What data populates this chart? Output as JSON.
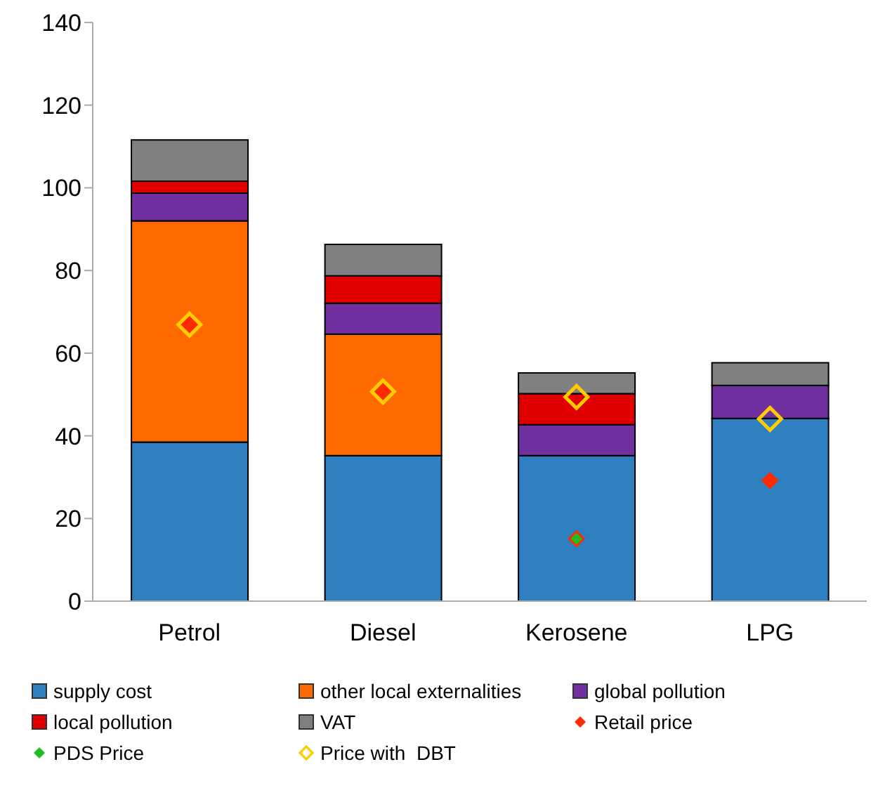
{
  "chart_data": {
    "type": "bar",
    "stacked": true,
    "categories": [
      "Petrol",
      "Diesel",
      "Kerosene",
      "LPG"
    ],
    "series": [
      {
        "name": "supply cost",
        "color": "#2e7fc0",
        "values": [
          38.5,
          35.2,
          35.2,
          44.2
        ]
      },
      {
        "name": "other local externalities",
        "color": "#ff6a00",
        "values": [
          53.5,
          29.4,
          0,
          0
        ]
      },
      {
        "name": "global pollution",
        "color": "#7030a0",
        "values": [
          6.7,
          7.5,
          7.5,
          8.0
        ]
      },
      {
        "name": "local pollution",
        "color": "#e00000",
        "values": [
          2.9,
          6.6,
          7.5,
          0
        ]
      },
      {
        "name": "VAT",
        "color": "#808080",
        "values": [
          10.0,
          7.6,
          5.0,
          5.5
        ]
      },
      {
        "name": "Retail price",
        "type": "scatter",
        "marker": "diamond",
        "color": "#ff2a00",
        "values": [
          66.9,
          50.7,
          15.1,
          29.2
        ]
      },
      {
        "name": "PDS Price",
        "type": "scatter",
        "marker": "diamond",
        "color": "#22bb22",
        "values": [
          null,
          null,
          15.1,
          null
        ]
      },
      {
        "name": "Price with  DBT",
        "type": "scatter",
        "marker": "diamond",
        "color": "#ffcc00",
        "values": [
          66.9,
          50.7,
          49.4,
          44.1
        ]
      }
    ],
    "ylim": [
      0,
      140
    ],
    "yticks": [
      0,
      20,
      40,
      60,
      80,
      100,
      120,
      140
    ],
    "legend": "bottom"
  }
}
